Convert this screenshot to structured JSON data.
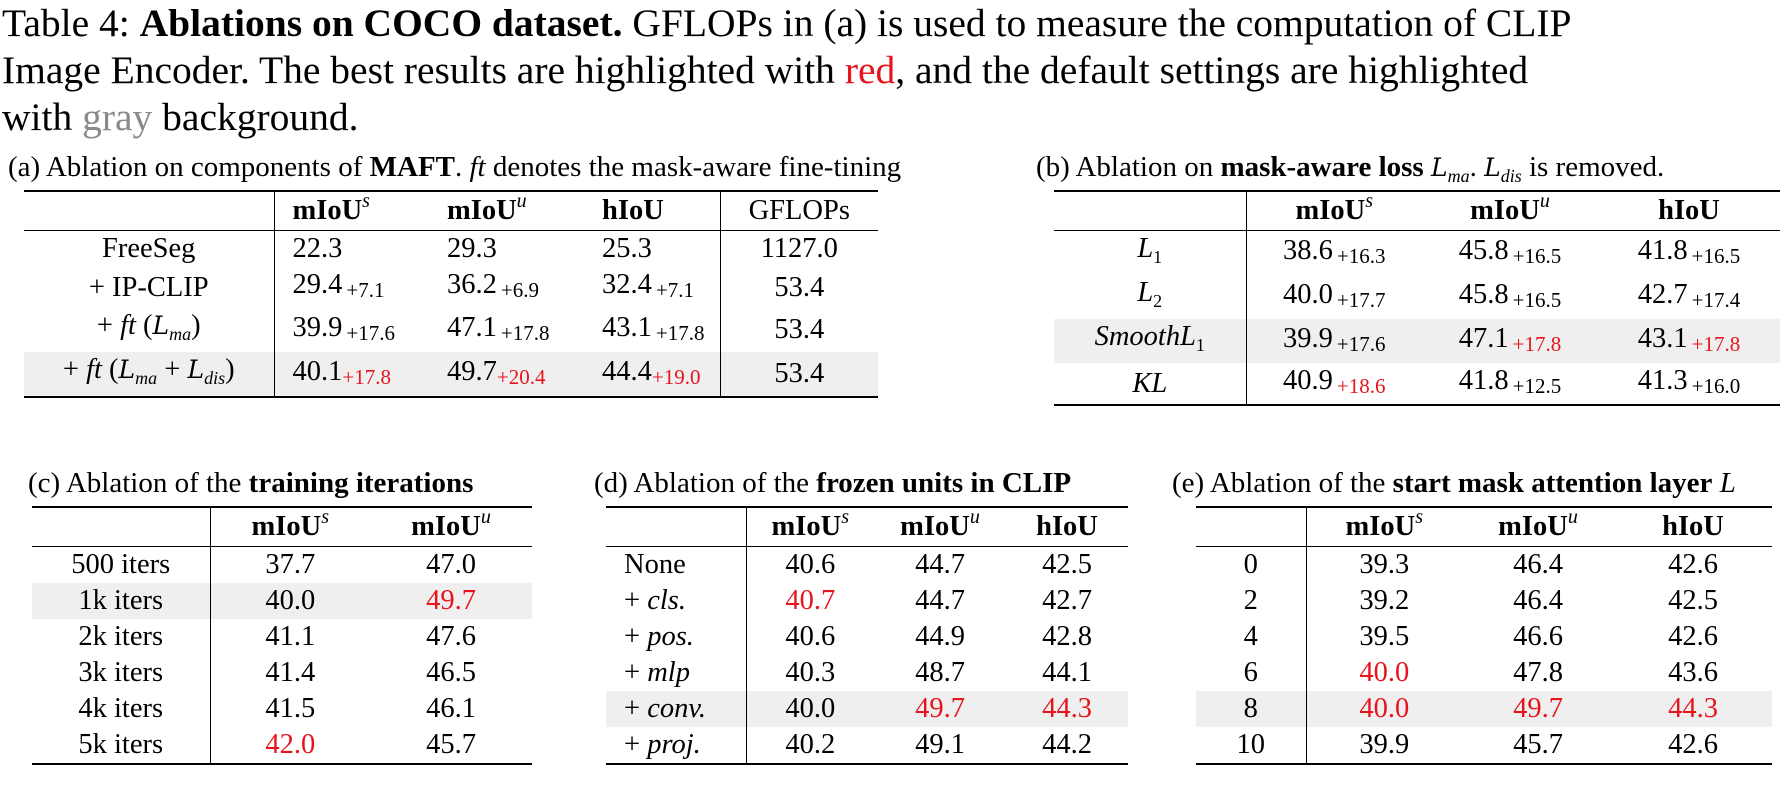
{
  "caption": {
    "table_no": "Table 4:",
    "bold": "Ablations on COCO dataset.",
    "text1": " GFLOPs in (a) is used to measure the computation of CLIP",
    "text2": "Image Encoder. The best results are highlighted with ",
    "red_word": "red",
    "text3": ", and the default settings are highlighted",
    "text4": "with ",
    "gray_word": "gray",
    "text5": " background."
  },
  "table_a": {
    "caption_pre": "(a) Ablation on components of ",
    "caption_bold": "MAFT",
    "caption_mid": ". ",
    "caption_ft": "ft",
    "caption_post": " denotes the mask-aware fine-tining",
    "headers": [
      "mIoU",
      "mIoU",
      "hIoU",
      "GFLOPs"
    ],
    "header_sups": [
      "s",
      "u"
    ],
    "rows": [
      {
        "name": "FreeSeg",
        "ms": "22.3",
        "ms_d": "",
        "mu": "29.3",
        "mu_d": "",
        "h": "25.3",
        "h_d": "",
        "g": "1127.0"
      },
      {
        "name": "+ IP-CLIP",
        "ms": "29.4",
        "ms_d": "+7.1",
        "mu": "36.2",
        "mu_d": "+6.9",
        "h": "32.4",
        "h_d": "+7.1",
        "g": "53.4"
      },
      {
        "name_pre": "+ ",
        "name_ft": "ft",
        "name_lpar": " (",
        "name_L": "L",
        "name_Lsub": "ma",
        "name_rpar": ")",
        "ms": "39.9",
        "ms_d": "+17.6",
        "mu": "47.1",
        "mu_d": "+17.8",
        "h": "43.1",
        "h_d": "+17.8",
        "g": "53.4"
      },
      {
        "name_pre": "+ ",
        "name_ft": "ft",
        "name_lpar": " (",
        "name_L": "L",
        "name_Lsub": "ma",
        "name_plus": " + ",
        "name_L2": "L",
        "name_L2sub": "dis",
        "name_rpar": ")",
        "ms": "40.1",
        "ms_d": "+17.8",
        "mu": "49.7",
        "mu_d": "+20.4",
        "h": "44.4",
        "h_d": "+19.0",
        "g": "53.4"
      }
    ]
  },
  "table_b": {
    "caption_pre": "(b) Ablation on ",
    "caption_bold": "mask-aware loss",
    "caption_L": "L",
    "caption_Lsub": "ma",
    "caption_dot": ". ",
    "caption_L2": "L",
    "caption_L2sub": "dis",
    "caption_post": " is removed.",
    "headers": [
      "mIoU",
      "mIoU",
      "hIoU"
    ],
    "header_sups": [
      "s",
      "u"
    ],
    "rows": [
      {
        "name": "L",
        "name_sub": "1",
        "ms": "38.6",
        "ms_d": "+16.3",
        "mu": "45.8",
        "mu_d": "+16.5",
        "h": "41.8",
        "h_d": "+16.5"
      },
      {
        "name": "L",
        "name_sub": "2",
        "ms": "40.0",
        "ms_d": "+17.7",
        "mu": "45.8",
        "mu_d": "+16.5",
        "h": "42.7",
        "h_d": "+17.4"
      },
      {
        "name": "SmoothL",
        "name_sub": "1",
        "ms": "39.9",
        "ms_d": "+17.6",
        "mu": "47.1",
        "mu_d": "+17.8",
        "h": "43.1",
        "h_d": "+17.8"
      },
      {
        "name": "KL",
        "name_sub": "",
        "ms": "40.9",
        "ms_d": "+18.6",
        "mu": "41.8",
        "mu_d": "+12.5",
        "h": "41.3",
        "h_d": "+16.0"
      }
    ]
  },
  "table_c": {
    "caption_pre": "(c) Ablation of the ",
    "caption_bold": "training iterations",
    "headers": [
      "mIoU",
      "mIoU"
    ],
    "header_sups": [
      "s",
      "u"
    ],
    "rows": [
      {
        "name": "500 iters",
        "ms": "37.7",
        "mu": "47.0"
      },
      {
        "name": "1k iters",
        "ms": "40.0",
        "mu": "49.7"
      },
      {
        "name": "2k iters",
        "ms": "41.1",
        "mu": "47.6"
      },
      {
        "name": "3k iters",
        "ms": "41.4",
        "mu": "46.5"
      },
      {
        "name": "4k iters",
        "ms": "41.5",
        "mu": "46.1"
      },
      {
        "name": "5k iters",
        "ms": "42.0",
        "mu": "45.7"
      }
    ]
  },
  "table_d": {
    "caption_pre": "(d) Ablation of the ",
    "caption_bold": "frozen units in CLIP",
    "headers": [
      "mIoU",
      "mIoU",
      "hIoU"
    ],
    "header_sups": [
      "s",
      "u"
    ],
    "rows": [
      {
        "name_pre": "",
        "name_it": "None",
        "ms": "40.6",
        "mu": "44.7",
        "h": "42.5"
      },
      {
        "name_pre": "+ ",
        "name_it": "cls.",
        "ms": "40.7",
        "mu": "44.7",
        "h": "42.7"
      },
      {
        "name_pre": "+ ",
        "name_it": "pos.",
        "ms": "40.6",
        "mu": "44.9",
        "h": "42.8"
      },
      {
        "name_pre": "+ ",
        "name_it": "mlp",
        "ms": "40.3",
        "mu": "48.7",
        "h": "44.1"
      },
      {
        "name_pre": "+ ",
        "name_it": "conv.",
        "ms": "40.0",
        "mu": "49.7",
        "h": "44.3"
      },
      {
        "name_pre": "+ ",
        "name_it": "proj.",
        "ms": "40.2",
        "mu": "49.1",
        "h": "44.2"
      }
    ]
  },
  "table_e": {
    "caption_pre": "(e) Ablation of the ",
    "caption_bold": "start mask attention layer",
    "caption_L": "L",
    "headers": [
      "mIoU",
      "mIoU",
      "hIoU"
    ],
    "header_sups": [
      "s",
      "u"
    ],
    "rows": [
      {
        "name": "0",
        "ms": "39.3",
        "mu": "46.4",
        "h": "42.6"
      },
      {
        "name": "2",
        "ms": "39.2",
        "mu": "46.4",
        "h": "42.5"
      },
      {
        "name": "4",
        "ms": "39.5",
        "mu": "46.6",
        "h": "42.6"
      },
      {
        "name": "6",
        "ms": "40.0",
        "mu": "47.8",
        "h": "43.6"
      },
      {
        "name": "8",
        "ms": "40.0",
        "mu": "49.7",
        "h": "44.3"
      },
      {
        "name": "10",
        "ms": "39.9",
        "mu": "45.7",
        "h": "42.6"
      }
    ]
  },
  "colors": {
    "best": "#e8141c",
    "default_bg": "#efefef",
    "gray_word": "#8a8a8a"
  }
}
